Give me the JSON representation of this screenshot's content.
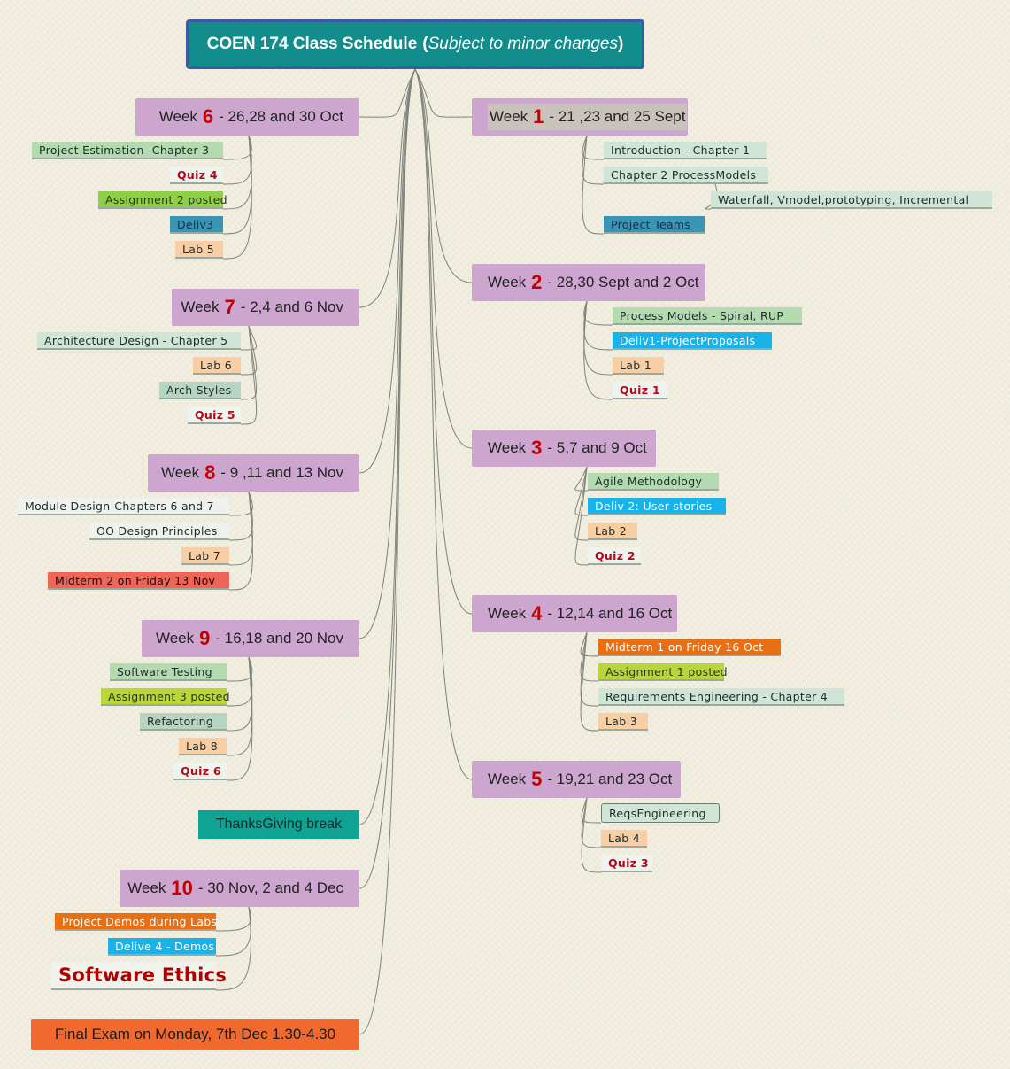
{
  "title": {
    "main": "COEN 174 Class Schedule",
    "paren_open": "(",
    "italic": "Subject to minor changes",
    "paren_close": ")"
  },
  "weeks": [
    {
      "id": "w1",
      "prefix": "Week",
      "num": "1",
      "dates": "- 21 ,23 and 25 Sept",
      "items": [
        {
          "label": "Introduction - Chapter 1",
          "style": "mint"
        },
        {
          "label": "Chapter 2 ProcessModels",
          "style": "mint"
        },
        {
          "label": "Waterfall, Vmodel,prototyping, Incremental",
          "style": "mint"
        },
        {
          "label": "Project Teams",
          "style": "teal"
        }
      ]
    },
    {
      "id": "w2",
      "prefix": "Week",
      "num": "2",
      "dates": "- 28,30 Sept and 2 Oct",
      "items": [
        {
          "label": "Process Models - Spiral, RUP",
          "style": "lgreen"
        },
        {
          "label": "Deliv1-ProjectProposals",
          "style": "cyan"
        },
        {
          "label": "Lab 1",
          "style": "peach"
        },
        {
          "label": "Quiz 1",
          "style": "quiz"
        }
      ]
    },
    {
      "id": "w3",
      "prefix": "Week",
      "num": "3",
      "dates": "- 5,7 and 9 Oct",
      "items": [
        {
          "label": "Agile Methodology",
          "style": "lgreen"
        },
        {
          "label": "Deliv 2: User stories",
          "style": "cyan"
        },
        {
          "label": "Lab 2",
          "style": "peach"
        },
        {
          "label": "Quiz 2",
          "style": "quiz"
        }
      ]
    },
    {
      "id": "w4",
      "prefix": "Week",
      "num": "4",
      "dates": "- 12,14 and 16 Oct",
      "items": [
        {
          "label": "Midterm 1  on Friday 16 Oct",
          "style": "orange"
        },
        {
          "label": "Assignment 1 posted",
          "style": "limeY"
        },
        {
          "label": "Requirements Engineering - Chapter 4",
          "style": "mint"
        },
        {
          "label": "Lab 3",
          "style": "peach"
        }
      ]
    },
    {
      "id": "w5",
      "prefix": "Week",
      "num": "5",
      "dates": "- 19,21 and 23 Oct",
      "items": [
        {
          "label": "ReqsEngineering",
          "style": "mint"
        },
        {
          "label": "Lab 4",
          "style": "peach"
        },
        {
          "label": "Quiz 3",
          "style": "quiz"
        }
      ]
    },
    {
      "id": "w6",
      "prefix": "Week",
      "num": "6",
      "dates": "- 26,28 and 30 Oct",
      "items": [
        {
          "label": "Project Estimation -Chapter 3",
          "style": "lgreen"
        },
        {
          "label": "Quiz 4",
          "style": "quiz"
        },
        {
          "label": "Assignment 2 posted",
          "style": "lime"
        },
        {
          "label": "Deliv3",
          "style": "teal"
        },
        {
          "label": "Lab 5",
          "style": "peach"
        }
      ]
    },
    {
      "id": "w7",
      "prefix": "Week",
      "num": "7",
      "dates": "- 2,4 and 6 Nov",
      "items": [
        {
          "label": "Architecture Design - Chapter 5",
          "style": "mint"
        },
        {
          "label": "Lab 6",
          "style": "peach"
        },
        {
          "label": "Arch Styles",
          "style": "sage"
        },
        {
          "label": "Quiz 5",
          "style": "quiz"
        }
      ]
    },
    {
      "id": "w8",
      "prefix": "Week",
      "num": "8",
      "dates": "- 9 ,11 and 13 Nov",
      "items": [
        {
          "label": "Module Design-Chapters 6 and 7",
          "style": "white"
        },
        {
          "label": "OO Design Principles",
          "style": "white"
        },
        {
          "label": "Lab 7",
          "style": "peach"
        },
        {
          "label": "Midterm  2 on Friday 13 Nov",
          "style": "red"
        }
      ]
    },
    {
      "id": "w9",
      "prefix": "Week",
      "num": "9",
      "dates": "- 16,18 and 20 Nov",
      "items": [
        {
          "label": "Software Testing",
          "style": "lgreen"
        },
        {
          "label": "Assignment 3 posted",
          "style": "limeY"
        },
        {
          "label": "Refactoring",
          "style": "sage"
        },
        {
          "label": "Lab 8",
          "style": "peach"
        },
        {
          "label": "Quiz 6",
          "style": "quiz"
        }
      ]
    },
    {
      "id": "w10",
      "prefix": "Week",
      "num": "10",
      "dates": "- 30 Nov, 2 and 4 Dec",
      "items": [
        {
          "label": "Project Demos during Labs",
          "style": "orange"
        },
        {
          "label": "Delive 4 - Demos",
          "style": "cyan"
        },
        {
          "label": "Software Ethics",
          "style": "ethics"
        }
      ]
    }
  ],
  "break_label": "ThanksGiving break",
  "final_exam": "Final Exam on Monday, 7th Dec 1.30-4.30"
}
